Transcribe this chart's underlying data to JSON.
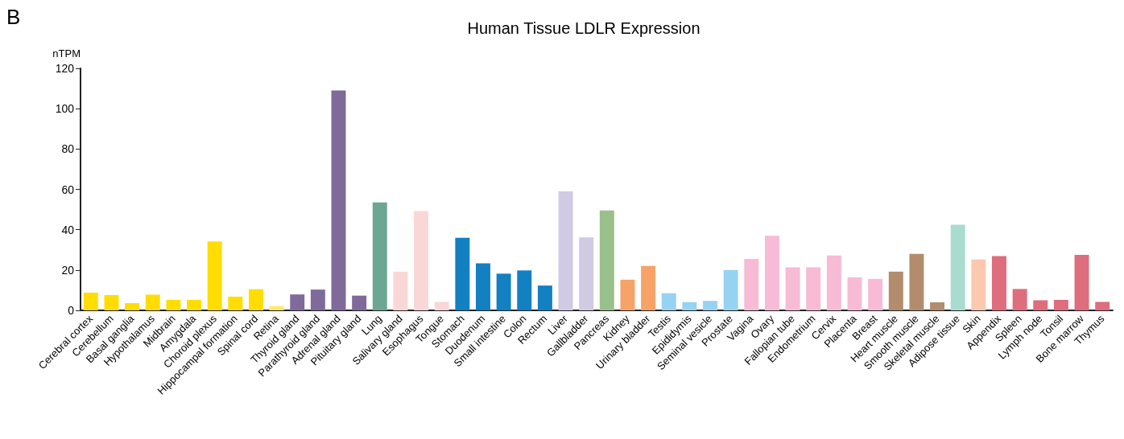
{
  "chart_data": {
    "type": "bar",
    "title": "Human Tissue LDLR Expression",
    "ylabel": "nTPM",
    "annotations": [
      "B"
    ],
    "categories": [
      "Cerebral cortex",
      "Cerebellum",
      "Basal ganglia",
      "Hypothalamus",
      "Midbrain",
      "Amygdala",
      "Choroid plexus",
      "Hippocampal formation",
      "Spinal cord",
      "Retina",
      "Thyroid gland",
      "Parathyroid gland",
      "Adrenal gland",
      "Pituitary gland",
      "Lung",
      "Salivary gland",
      "Esophagus",
      "Tongue",
      "Stomach",
      "Duodenum",
      "Small intestine",
      "Colon",
      "Rectum",
      "Liver",
      "Gallbladder",
      "Pancreas",
      "Kidney",
      "Urinary bladder",
      "Testis",
      "Epididymis",
      "Seminal vesicle",
      "Prostate",
      "Vagina",
      "Ovary",
      "Fallopian tube",
      "Endometrium",
      "Cervix",
      "Placenta",
      "Breast",
      "Heart muscle",
      "Smooth muscle",
      "Skeletal muscle",
      "Adipose tissue",
      "Skin",
      "Appendix",
      "Spleen",
      "Lymph node",
      "Tonsil",
      "Bone marrow",
      "Thymus"
    ],
    "values": [
      8.8,
      7.6,
      3.6,
      7.8,
      5.2,
      5.2,
      34.2,
      6.8,
      10.5,
      2.1,
      7.9,
      10.3,
      109,
      7.3,
      53.5,
      19.2,
      49.2,
      4.2,
      36,
      23.3,
      18.2,
      19.8,
      12.3,
      59,
      36.2,
      49.5,
      15.2,
      22,
      8.5,
      4.1,
      4.7,
      20,
      25.5,
      37,
      21.3,
      21.3,
      27.2,
      16.4,
      15.6,
      19.2,
      28,
      4,
      42.5,
      25.2,
      26.9,
      10.6,
      5,
      5.2,
      27.5,
      4.2
    ],
    "colors": [
      "#ffdd00",
      "#ffdd00",
      "#ffdd00",
      "#ffdd00",
      "#ffdd00",
      "#ffdd00",
      "#ffdd00",
      "#ffdd00",
      "#ffdd00",
      "#ffe866",
      "#7f6a9b",
      "#7f6a9b",
      "#7f6a9b",
      "#7f6a9b",
      "#6ba792",
      "#fad7d7",
      "#fad7d7",
      "#fad7d7",
      "#1380c2",
      "#1380c2",
      "#1380c2",
      "#1380c2",
      "#1380c2",
      "#d0cae4",
      "#d0cae4",
      "#99c08b",
      "#f7a267",
      "#f7a267",
      "#96d2f2",
      "#96d2f2",
      "#96d2f2",
      "#96d2f2",
      "#f7bbd6",
      "#f7bbd6",
      "#f7bbd6",
      "#f7bbd6",
      "#f7bbd6",
      "#f7bbd6",
      "#f7bbd6",
      "#b28c6d",
      "#b28c6d",
      "#b28c6d",
      "#a9dccf",
      "#fcc8b0",
      "#de6d7e",
      "#de6d7e",
      "#de6d7e",
      "#de6d7e",
      "#de6d7e",
      "#de6d7e"
    ],
    "ylim": [
      0,
      120
    ],
    "yticks": [
      0,
      20,
      40,
      60,
      80,
      100,
      120
    ],
    "grid": false
  }
}
